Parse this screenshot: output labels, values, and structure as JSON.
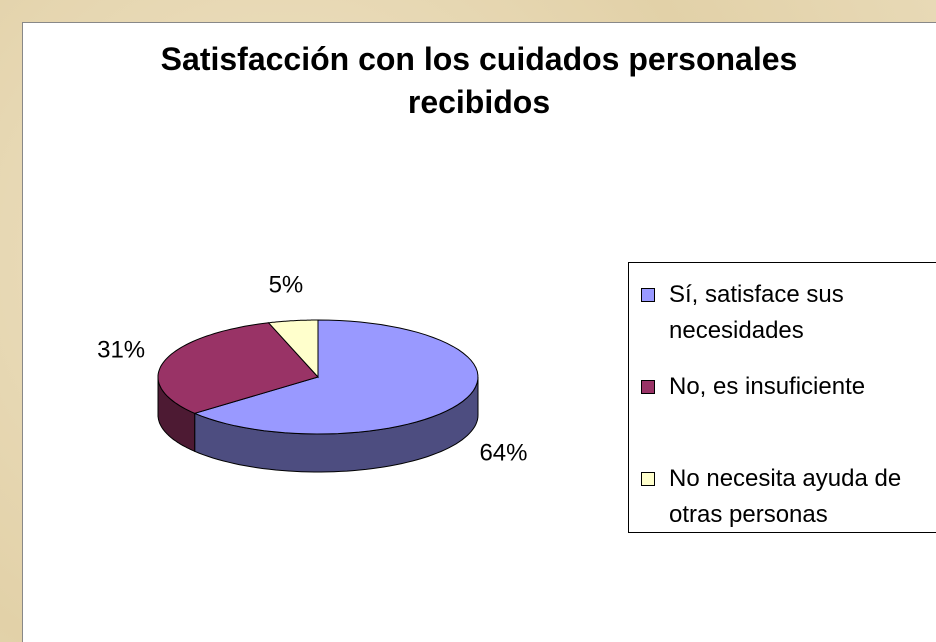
{
  "chart_data": {
    "type": "pie",
    "title": "Satisfacción con los cuidados personales recibidos",
    "categories": [
      "Sí, satisface sus necesidades",
      "No, es insuficiente",
      "No necesita ayuda de otras personas"
    ],
    "values": [
      64,
      31,
      5
    ],
    "value_labels": [
      "64%",
      "31%",
      "5%"
    ],
    "colors": [
      "#9999ff",
      "#993366",
      "#ffffcc"
    ],
    "legend": "right"
  }
}
